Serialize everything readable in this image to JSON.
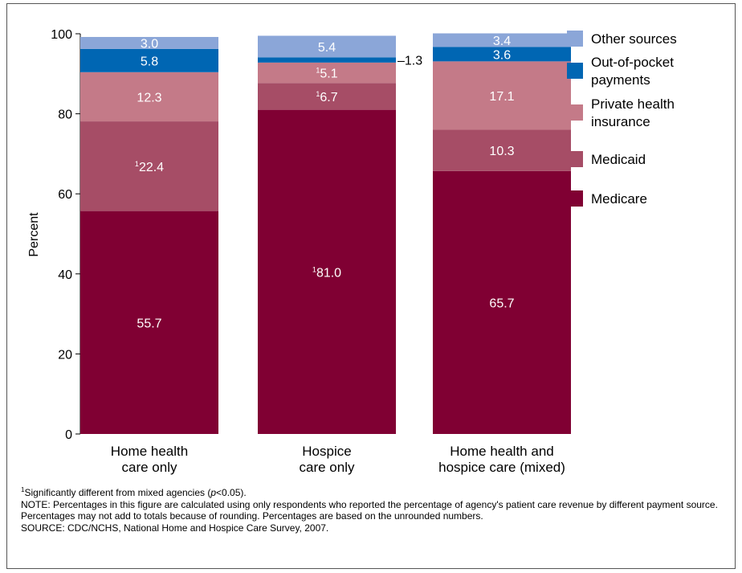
{
  "chart_data": {
    "type": "bar",
    "stacked": true,
    "ylabel": "Percent",
    "ylim": [
      0,
      100
    ],
    "yticks": [
      "0",
      "20",
      "40",
      "60",
      "80",
      "100"
    ],
    "ytick_values": [
      0,
      20,
      40,
      60,
      80,
      100
    ],
    "categories": [
      [
        "Home health",
        "care only"
      ],
      [
        "Hospice",
        "care only"
      ],
      [
        "Home health and",
        "hospice care (mixed)"
      ]
    ],
    "series": [
      {
        "name": "Medicare",
        "color": "#800033",
        "values": [
          55.7,
          81.0,
          65.7
        ],
        "labels": [
          "55.7",
          "¹81.0",
          "65.7"
        ]
      },
      {
        "name": "Medicaid",
        "color": "#A64D66",
        "values": [
          22.4,
          6.7,
          10.3
        ],
        "labels": [
          "¹22.4",
          "¹6.7",
          "10.3"
        ]
      },
      {
        "name": "Private health insurance",
        "legend_lines": [
          "Private health",
          "insurance"
        ],
        "color": "#C47A88",
        "values": [
          12.3,
          5.1,
          17.1
        ],
        "labels": [
          "12.3",
          "¹5.1",
          "17.1"
        ]
      },
      {
        "name": "Out-of-pocket payments",
        "legend_lines": [
          "Out-of-pocket",
          "payments"
        ],
        "color": "#0066B3",
        "values": [
          5.8,
          1.3,
          3.6
        ],
        "labels": [
          "5.8",
          "–1.3",
          "3.6"
        ]
      },
      {
        "name": "Other sources",
        "color": "#8BA6D8",
        "values": [
          3.0,
          5.4,
          3.4
        ],
        "labels": [
          "3.0",
          "5.4",
          "3.4"
        ]
      }
    ],
    "legend_order": [
      "Other sources",
      "Out-of-pocket payments",
      "Private health insurance",
      "Medicaid",
      "Medicare"
    ],
    "legend_position": "right",
    "grid": false
  },
  "notes": {
    "significance": "Significantly different from mixed agencies (p<0.05).",
    "note": "NOTE: Percentages in this figure are calculated using only respondents who reported the percentage of agency's patient care revenue by different payment source. Percentages may not add to totals because of rounding. Percentages are based on the unrounded numbers.",
    "source": "SOURCE: CDC/NCHS, National Home and Hospice Care Survey, 2007."
  }
}
